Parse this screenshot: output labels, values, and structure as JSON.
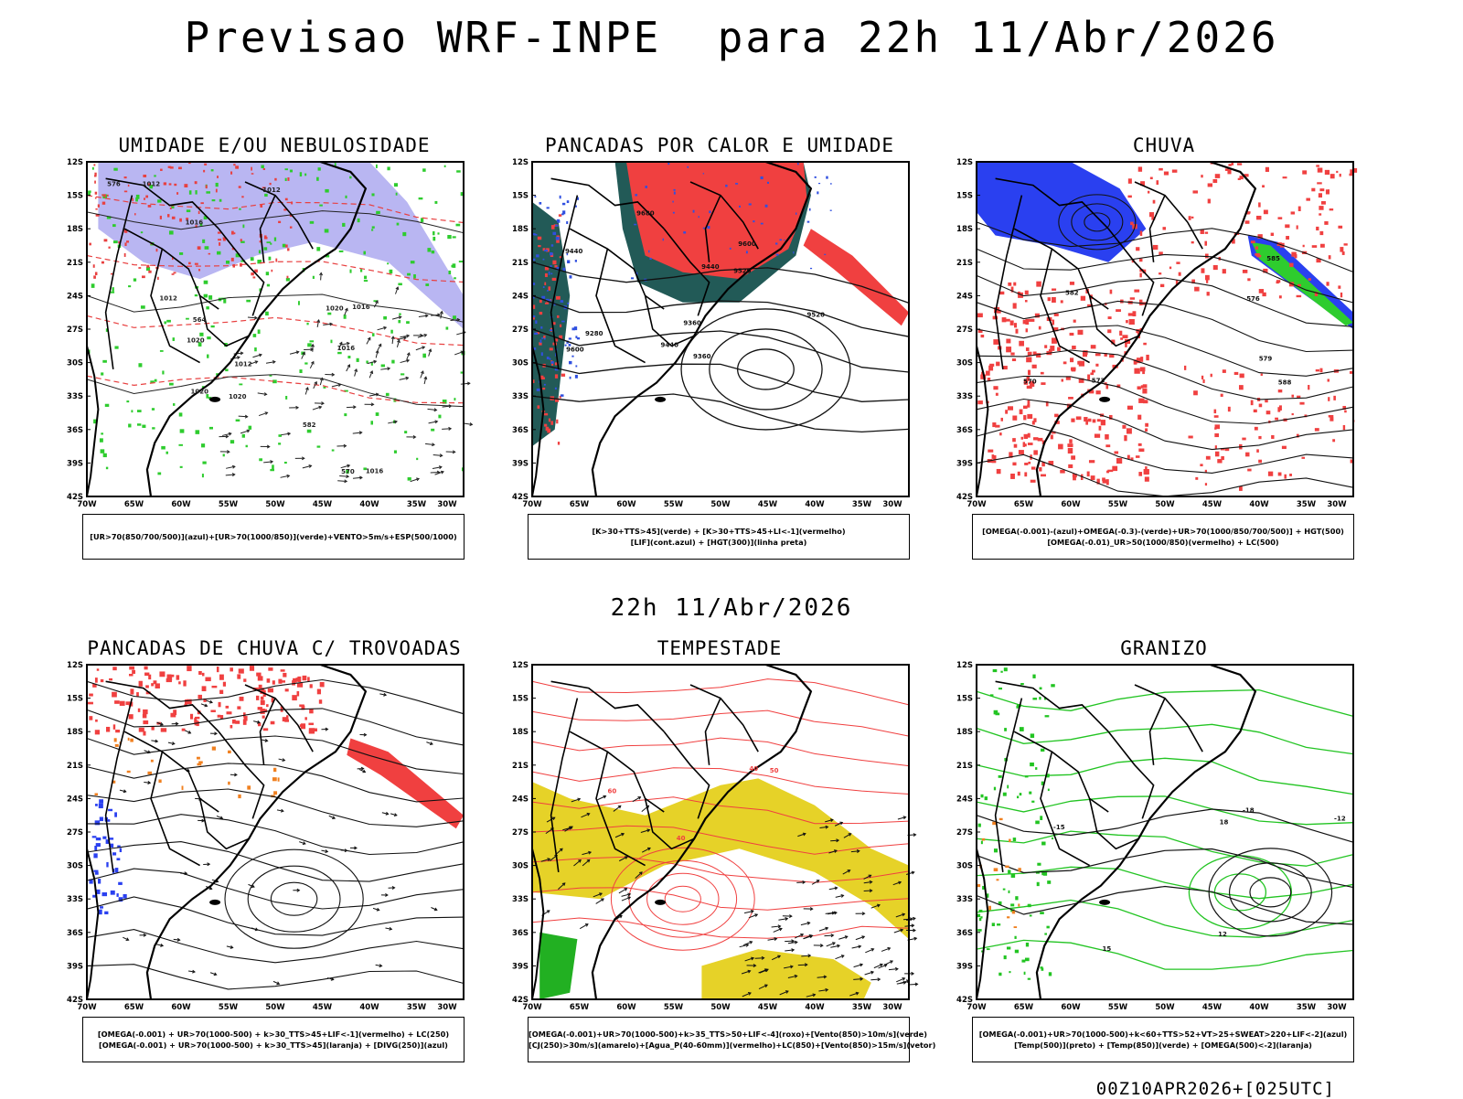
{
  "header": {
    "title": "Previsao WRF-INPE  para 22h 11/Abr/2026"
  },
  "middle": {
    "title": "22h 11/Abr/2026"
  },
  "footer": {
    "run": "00Z10APR2026+[025UTC]"
  },
  "axes": {
    "lat_labels": [
      "12S",
      "15S",
      "18S",
      "21S",
      "24S",
      "27S",
      "30S",
      "33S",
      "36S",
      "39S",
      "42S"
    ],
    "lon_labels": [
      "70W",
      "65W",
      "60W",
      "55W",
      "50W",
      "45W",
      "40W",
      "35W",
      "30W"
    ]
  },
  "panels": [
    {
      "title": "UMIDADE E/OU NEBULOSIDADE",
      "legend": [
        "[UR>70(850/700/500)](azul)+[UR>70(1000/850)](verde)+VENTO>5m/s+ESP(500/1000)"
      ],
      "contour_labels": [
        "1012",
        "1012",
        "1012",
        "1016",
        "1016",
        "1016",
        "1020",
        "1020",
        "1020",
        "1020",
        "1016",
        "1012",
        "576",
        "570",
        "564",
        "582"
      ]
    },
    {
      "title": "PANCADAS POR CALOR E UMIDADE",
      "legend": [
        "[K>30+TTS>45](verde) + [K>30+TTS>45+LI<-1](vermelho)",
        "[LIF](cont.azul) + [HGT(300)](linha preta)"
      ],
      "contour_labels": [
        "9680",
        "9600",
        "9520",
        "9440",
        "9360",
        "9280",
        "9440",
        "9520",
        "9600",
        "9440",
        "9360"
      ]
    },
    {
      "title": "CHUVA",
      "legend": [
        "[OMEGA(-0.001)-(azul)+OMEGA(-0.3)-(verde)+UR>70(1000/850/700/500)] + HGT(500)",
        "[OMEGA(-0.01)_UR>50(1000/850)(vermelho) + LC(500)"
      ],
      "contour_labels": [
        "588",
        "585",
        "582",
        "579",
        "576",
        "573",
        "570"
      ]
    },
    {
      "title": "PANCADAS DE CHUVA C/ TROVOADAS",
      "legend": [
        "[OMEGA(-0.001) + UR>70(1000-500) + k>30_TTS>45+LIF<-1](vermelho) + LC(250)",
        "[OMEGA(-0.001) + UR>70(1000-500) + k>30_TTS>45](laranja) + [DIVG(250)](azul)"
      ],
      "contour_labels": []
    },
    {
      "title": "TEMPESTADE",
      "legend": [
        "[OMEGA(-0.001)+UR>70(1000-500)+k>35_TTS>50+LIF<-4](roxo)+[Vento(850)>10m/s](verde)",
        "[CJ(250)>30m/s](amarelo)+[Agua_P(40-60mm)](vermelho)+LC(850)+[Vento(850)>15m/s](vetor)"
      ],
      "contour_labels": [
        "40",
        "50",
        "60",
        "40"
      ]
    },
    {
      "title": "GRANIZO",
      "legend": [
        "[OMEGA(-0.001)+UR>70(1000-500)+k<60+TTS>52+VT>25+SWEAT>220+LIF<-2](azul)",
        "[Temp(500)](preto) + [Temp(850)](verde) + [OMEGA(500)<-2](laranja)"
      ],
      "contour_labels": [
        "-12",
        "-15",
        "-18",
        "12",
        "15",
        "18"
      ]
    }
  ]
}
